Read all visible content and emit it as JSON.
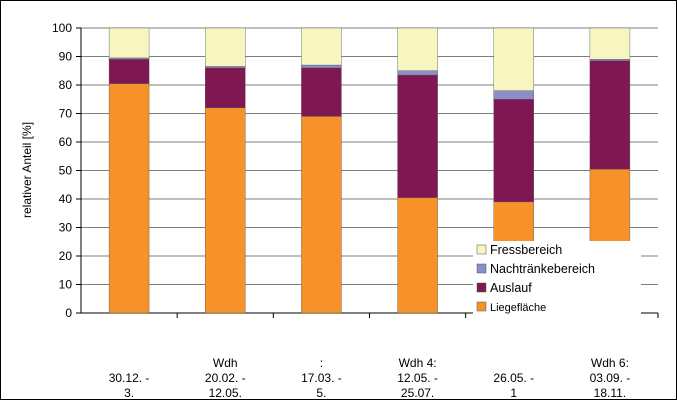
{
  "chart_data": {
    "type": "bar",
    "stacked": true,
    "ylabel": "relativer Anteil [%]",
    "ylim": [
      0,
      100
    ],
    "yticks": [
      0,
      10,
      20,
      30,
      40,
      50,
      60,
      70,
      80,
      90,
      100
    ],
    "grid": true,
    "legend_position": "inside-right",
    "categories": [
      [
        "30.12. -",
        "3."
      ],
      [
        "Wdh",
        "20.02. -",
        "12.05."
      ],
      [
        ":",
        "17.03. -",
        "5."
      ],
      [
        "Wdh 4:",
        "12.05. -",
        "25.07."
      ],
      [
        "26.05. -",
        "1"
      ],
      [
        "Wdh 6:",
        "03.09. -",
        "18.11."
      ]
    ],
    "series": [
      {
        "name": "Liegefläche",
        "color": "#f7922a",
        "values": [
          80.5,
          72,
          69,
          40.5,
          39,
          50.5
        ]
      },
      {
        "name": "Auslauf",
        "color": "#7f1752",
        "values": [
          8.5,
          14,
          17,
          43,
          36,
          38
        ]
      },
      {
        "name": "Nachtränkebereich",
        "color": "#8a8ec9",
        "values": [
          0.5,
          0.5,
          1,
          1.5,
          3,
          0.5
        ]
      },
      {
        "name": "Fressbereich",
        "color": "#f7f5c0",
        "values": [
          10.5,
          13.5,
          13,
          15,
          22,
          11
        ]
      }
    ],
    "legend_order": [
      "Fressbereich",
      "Nachtränkebereich",
      "Auslauf",
      "Liegefläche"
    ]
  }
}
